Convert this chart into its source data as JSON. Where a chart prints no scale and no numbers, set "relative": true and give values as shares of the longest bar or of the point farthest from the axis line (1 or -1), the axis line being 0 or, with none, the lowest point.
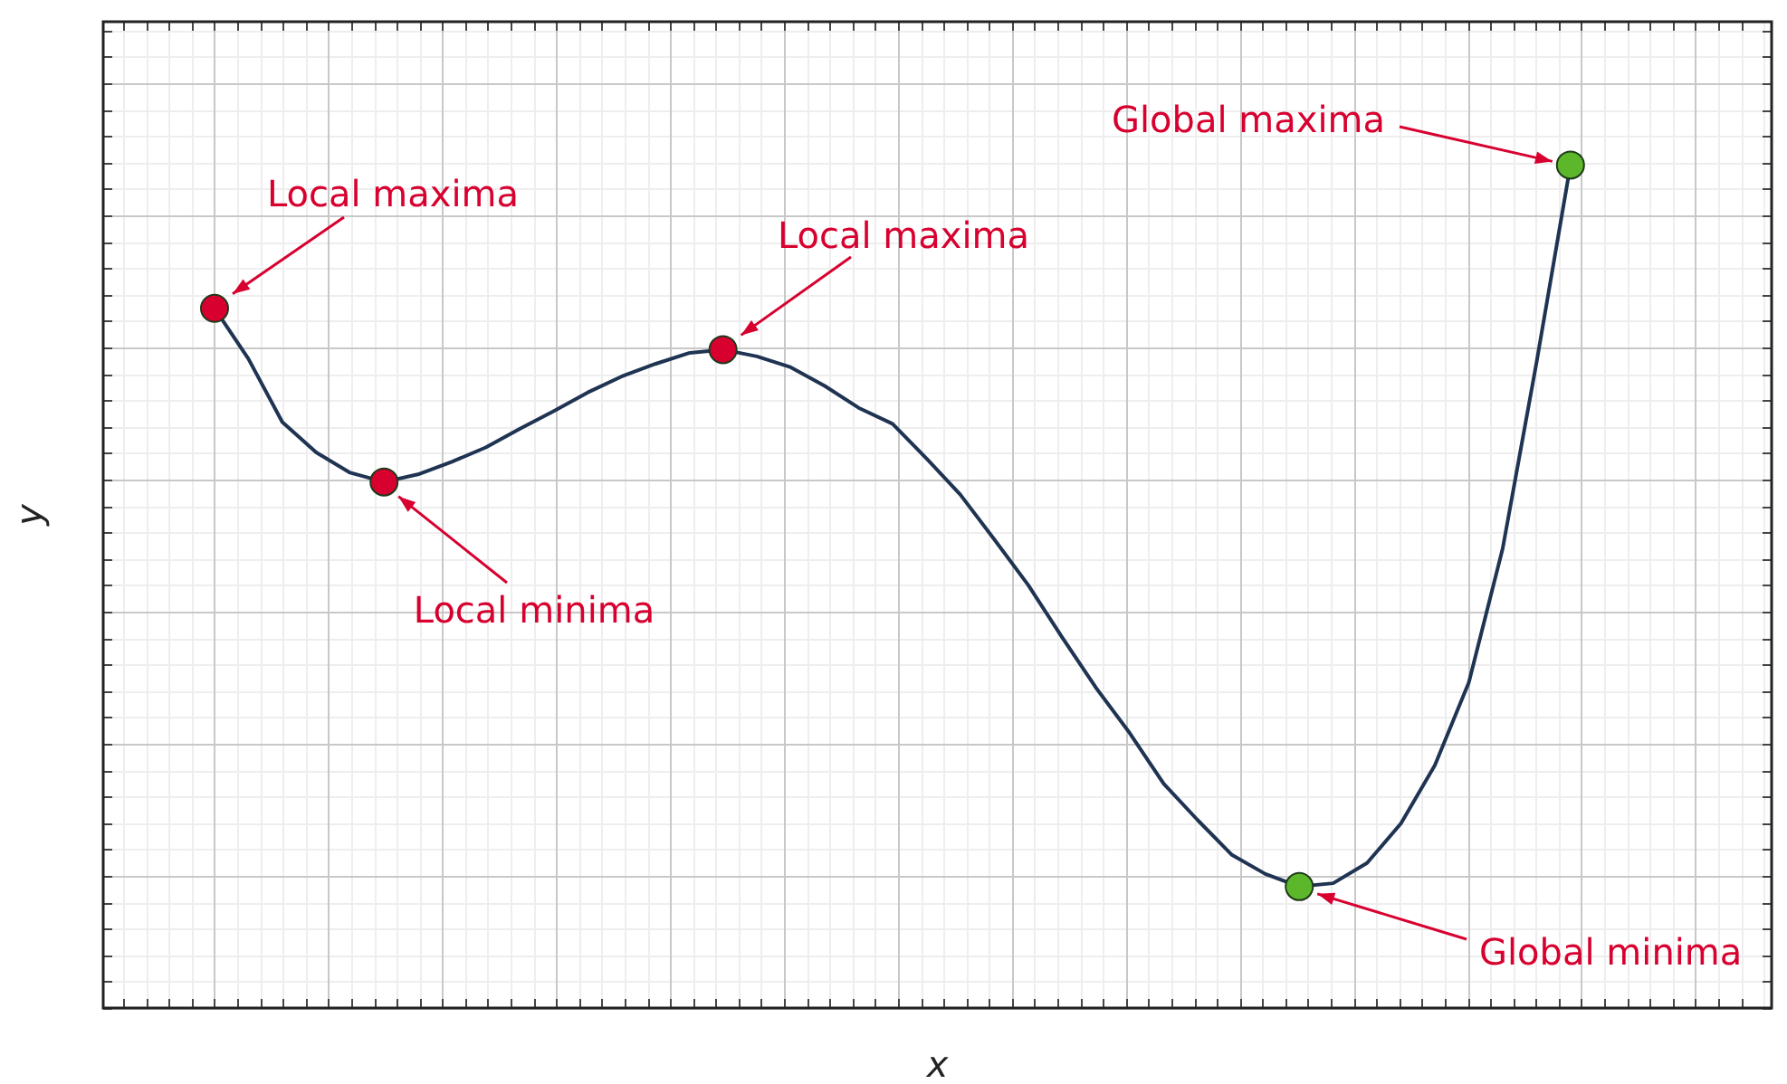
{
  "chart_data": {
    "type": "line",
    "relative": true,
    "xlabel": "x",
    "ylabel": "y",
    "tick_labels": false,
    "grid": true,
    "legend": false,
    "categories": [
      null,
      null,
      null,
      null,
      null,
      null,
      null,
      null,
      null,
      null,
      null,
      null,
      null,
      null,
      null,
      null,
      null,
      null,
      null,
      null,
      null,
      null,
      null,
      null,
      null,
      null,
      null,
      null,
      null,
      null,
      null,
      null,
      null,
      null,
      null,
      null,
      null,
      null,
      null,
      null,
      null
    ],
    "series": [
      {
        "color": "#1f3352",
        "line_style": "solid",
        "values": [
          0.83,
          0.77,
          0.695,
          0.659,
          0.635,
          0.624,
          0.633,
          0.648,
          0.665,
          0.687,
          0.708,
          0.73,
          0.749,
          0.764,
          0.777,
          0.781,
          0.773,
          0.76,
          0.738,
          0.712,
          0.693,
          0.652,
          0.609,
          0.556,
          0.502,
          0.44,
          0.38,
          0.326,
          0.266,
          0.223,
          0.182,
          0.159,
          0.144,
          0.148,
          0.172,
          0.219,
          0.288,
          0.386,
          0.545,
          0.766,
          1
        ],
        "colors": [
          "#d7002f",
          null,
          null,
          null,
          null,
          "#d7002f",
          null,
          null,
          null,
          null,
          null,
          null,
          null,
          null,
          null,
          "#d7002f",
          null,
          null,
          null,
          null,
          null,
          null,
          null,
          null,
          null,
          null,
          null,
          null,
          null,
          null,
          null,
          null,
          "#5cb82a",
          null,
          null,
          null,
          null,
          null,
          null,
          null,
          "#5cb82a"
        ]
      }
    ],
    "annotations": [
      "Local maxima",
      "Local minima",
      "Local maxima",
      "Global minima",
      "Global maxima"
    ]
  }
}
